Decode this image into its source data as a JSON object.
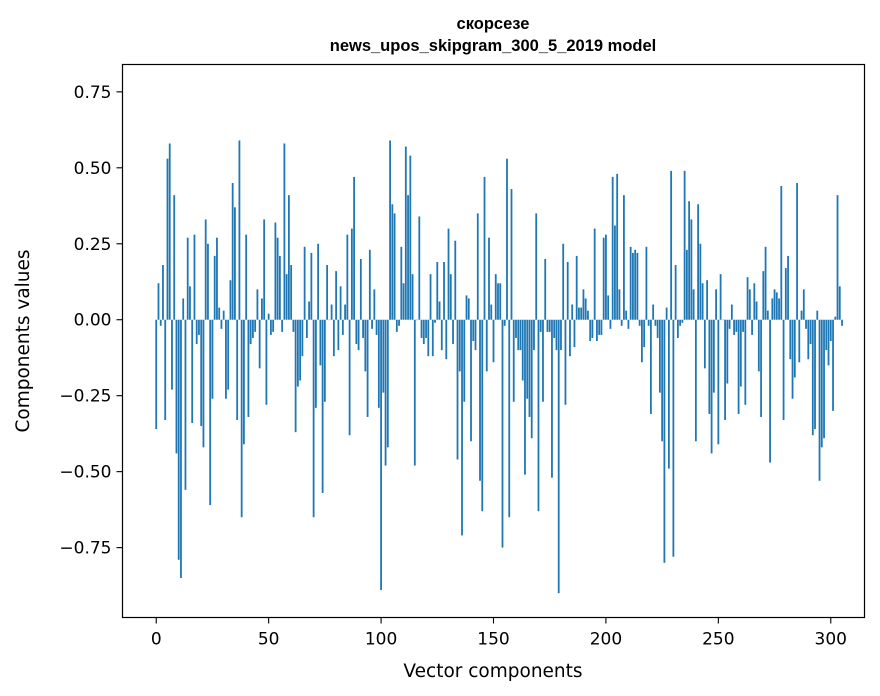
{
  "chart_data": {
    "type": "bar",
    "title": "скорсезе",
    "subtitle": "news_upos_skipgram_300_5_2019 model",
    "xlabel": "Vector components",
    "ylabel": "Components values",
    "xlim": [
      -15,
      315
    ],
    "ylim": [
      -0.98,
      0.84
    ],
    "xticks": [
      0,
      50,
      100,
      150,
      200,
      250,
      300
    ],
    "xtick_labels": [
      "0",
      "50",
      "100",
      "150",
      "200",
      "250",
      "300"
    ],
    "yticks": [
      -0.75,
      -0.5,
      -0.25,
      0.0,
      0.25,
      0.5,
      0.75
    ],
    "ytick_labels": [
      "−0.75",
      "−0.50",
      "−0.25",
      "0.00",
      "0.25",
      "0.50",
      "0.75"
    ],
    "bar_color": "#1f77b4",
    "grid": false,
    "values": [
      -0.36,
      0.12,
      -0.02,
      0.18,
      -0.33,
      0.53,
      0.58,
      -0.23,
      0.41,
      -0.44,
      -0.79,
      -0.85,
      0.07,
      -0.56,
      0.27,
      0.11,
      -0.34,
      0.28,
      -0.08,
      -0.05,
      -0.35,
      -0.42,
      0.33,
      0.25,
      -0.61,
      -0.26,
      0.21,
      0.27,
      0.04,
      -0.03,
      0.03,
      -0.26,
      -0.23,
      0.13,
      0.45,
      0.37,
      -0.33,
      0.59,
      -0.65,
      -0.41,
      0.28,
      -0.32,
      -0.08,
      -0.06,
      -0.04,
      0.1,
      -0.16,
      0.07,
      0.33,
      -0.28,
      0.02,
      -0.05,
      -0.04,
      0.32,
      0.27,
      0.21,
      -0.04,
      0.58,
      0.15,
      0.41,
      0.18,
      -0.04,
      -0.37,
      -0.22,
      -0.2,
      -0.12,
      0.24,
      -0.06,
      0.06,
      0.22,
      -0.65,
      -0.29,
      0.25,
      -0.15,
      -0.57,
      -0.27,
      0.18,
      0.0,
      0.05,
      -0.12,
      0.16,
      -0.1,
      0.11,
      -0.05,
      0.05,
      0.28,
      -0.38,
      0.3,
      0.47,
      -0.08,
      -0.1,
      0.2,
      -0.06,
      -0.17,
      -0.32,
      0.23,
      -0.03,
      0.1,
      -0.05,
      -0.29,
      -0.89,
      -0.24,
      -0.48,
      -0.42,
      0.59,
      0.38,
      0.35,
      -0.04,
      -0.02,
      0.24,
      0.12,
      0.57,
      0.41,
      0.54,
      0.15,
      -0.48,
      0.0,
      0.34,
      -0.06,
      -0.08,
      -0.06,
      -0.12,
      0.15,
      -0.12,
      -0.01,
      0.19,
      0.06,
      -0.1,
      0.19,
      -0.13,
      0.3,
      0.15,
      -0.08,
      0.26,
      -0.46,
      -0.17,
      -0.71,
      -0.27,
      0.08,
      0.07,
      -0.4,
      -0.07,
      -0.1,
      0.35,
      -0.53,
      -0.63,
      0.47,
      -0.17,
      0.27,
      0.05,
      -0.14,
      0.15,
      0.12,
      0.12,
      -0.75,
      -0.02,
      0.53,
      -0.65,
      0.43,
      -0.27,
      -0.06,
      -0.1,
      -0.1,
      -0.2,
      -0.51,
      -0.26,
      -0.32,
      -0.39,
      -0.1,
      0.35,
      -0.63,
      -0.04,
      -0.27,
      0.2,
      -0.04,
      -0.04,
      -0.52,
      -0.06,
      -0.1,
      -0.9,
      -0.1,
      0.25,
      -0.28,
      0.19,
      -0.12,
      0.05,
      -0.09,
      0.21,
      0.04,
      0.04,
      0.1,
      0.07,
      0.03,
      -0.07,
      -0.06,
      0.3,
      -0.07,
      -0.05,
      -0.05,
      0.27,
      0.28,
      0.08,
      -0.03,
      0.47,
      0.31,
      0.48,
      0.1,
      -0.02,
      0.41,
      0.03,
      -0.03,
      0.24,
      0.22,
      0.23,
      0.22,
      -0.02,
      -0.14,
      -0.09,
      0.24,
      -0.02,
      -0.31,
      0.05,
      -0.02,
      -0.06,
      -0.24,
      -0.4,
      -0.8,
      0.04,
      -0.49,
      0.49,
      -0.78,
      0.18,
      -0.06,
      -0.02,
      -0.01,
      0.49,
      0.23,
      0.39,
      0.33,
      0.1,
      -0.4,
      0.38,
      0.25,
      0.12,
      -0.16,
      0.13,
      -0.31,
      -0.44,
      -0.24,
      0.1,
      -0.41,
      0.15,
      0.0,
      -0.33,
      -0.21,
      -0.03,
      0.05,
      -0.05,
      -0.04,
      -0.31,
      -0.22,
      -0.04,
      -0.28,
      0.14,
      0.1,
      -0.05,
      0.12,
      0.06,
      -0.17,
      -0.32,
      0.16,
      0.24,
      0.03,
      -0.47,
      0.07,
      0.1,
      0.09,
      0.07,
      0.44,
      -0.33,
      0.17,
      0.21,
      -0.13,
      -0.26,
      -0.19,
      0.45,
      -0.14,
      0.03,
      0.1,
      -0.03,
      -0.13,
      -0.08,
      -0.38,
      -0.36,
      0.03,
      -0.53,
      -0.42,
      -0.39,
      -0.1,
      -0.15,
      -0.07,
      -0.3,
      0.01,
      0.41,
      0.11,
      -0.02
    ]
  }
}
